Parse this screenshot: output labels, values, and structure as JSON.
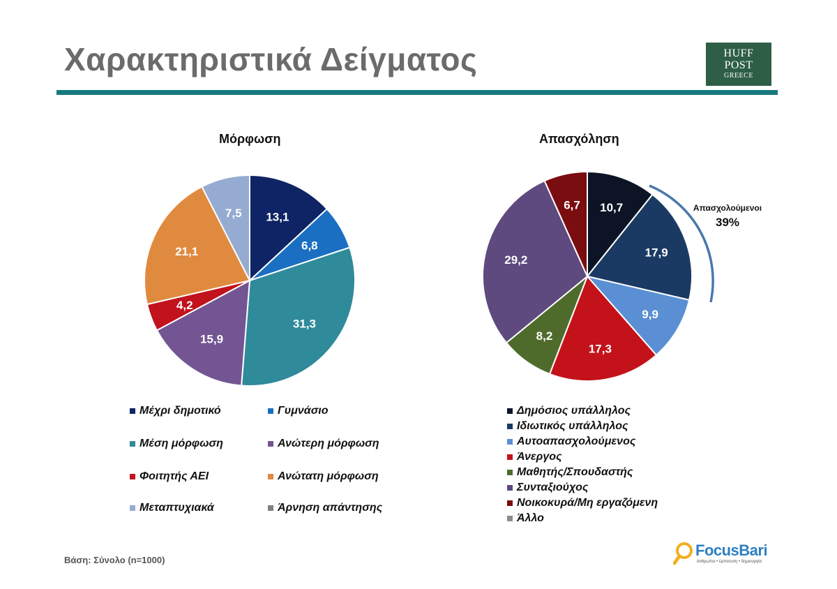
{
  "header": {
    "title": "Χαρακτηριστικά Δείγματος",
    "logo_line1": "HUFF",
    "logo_line2": "POST",
    "logo_line3": "GREECE"
  },
  "colors": {
    "accent_rule": "#17797d",
    "logo_bg": "#2e5e46",
    "callout_arc": "#4a78ad"
  },
  "chart_data": [
    {
      "type": "pie",
      "title": "Μόρφωση",
      "categories": [
        "Μέχρι δημοτικό",
        "Γυμνάσιο",
        "Μέση μόρφωση",
        "Ανώτερη μόρφωση",
        "Φοιτητής ΑΕΙ",
        "Ανώτατη μόρφωση",
        "Μεταπτυχιακά",
        "Άρνηση απάντησης"
      ],
      "values": [
        13.1,
        6.8,
        31.3,
        15.9,
        4.2,
        21.1,
        7.5,
        0
      ],
      "labels": [
        "13,1",
        "6,8",
        "31,3",
        "15,9",
        "4,2",
        "21,1",
        "7,5",
        ""
      ],
      "colors": [
        "#0e2464",
        "#1a6fc2",
        "#2f8a9a",
        "#735593",
        "#c1121d",
        "#e08a3f",
        "#96abd1",
        "#7f7f7f"
      ],
      "legend": "bottom"
    },
    {
      "type": "pie",
      "title": "Απασχόληση",
      "categories": [
        "Δημόσιος υπάλληλος",
        "Ιδιωτικός υπάλληλος",
        "Αυτοαπασχολούμενος",
        "Άνεργος",
        "Μαθητής/Σπουδαστής",
        "Συνταξιούχος",
        "Νοικοκυρά/Μη εργαζόμενη",
        "Άλλο"
      ],
      "values": [
        10.7,
        17.9,
        9.9,
        17.3,
        8.2,
        29.2,
        6.7,
        0
      ],
      "labels": [
        "10,7",
        "17,9",
        "9,9",
        "17,3",
        "8,2",
        "29,2",
        "6,7",
        ""
      ],
      "colors": [
        "#0d1426",
        "#1b3a63",
        "#5b8fd4",
        "#c4121a",
        "#4f6b2c",
        "#5e4a7e",
        "#7a0d10",
        "#8c8c8c"
      ],
      "legend": "bottom",
      "annotation": {
        "label": "Απασχολούμενοι",
        "value": "39%"
      }
    }
  ],
  "footer": {
    "base_note": "Βάση: Σύνολο (n=1000)",
    "brand_name": "FocusBari",
    "brand_tagline": "άνθρωποι • έμπνευση • δημιουργία"
  }
}
